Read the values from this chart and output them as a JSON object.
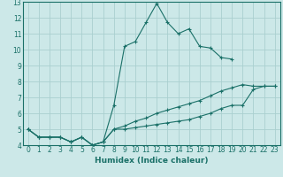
{
  "xlabel": "Humidex (Indice chaleur)",
  "xlim": [
    -0.5,
    23.5
  ],
  "ylim": [
    4,
    13
  ],
  "xticks": [
    0,
    1,
    2,
    3,
    4,
    5,
    6,
    7,
    8,
    9,
    10,
    11,
    12,
    13,
    14,
    15,
    16,
    17,
    18,
    19,
    20,
    21,
    22,
    23
  ],
  "yticks": [
    4,
    5,
    6,
    7,
    8,
    9,
    10,
    11,
    12,
    13
  ],
  "bg_color": "#cce8e8",
  "line_color": "#1a7068",
  "grid_color": "#aacfcf",
  "lines": [
    {
      "x": [
        0,
        1,
        2,
        3,
        4,
        5,
        6,
        7,
        8,
        9,
        10,
        11,
        12,
        13,
        14,
        15,
        16,
        17,
        18,
        19,
        20,
        21,
        22,
        23
      ],
      "y": [
        5.0,
        4.5,
        4.5,
        4.5,
        4.2,
        4.5,
        4.0,
        4.2,
        6.5,
        10.2,
        10.5,
        11.7,
        12.9,
        11.7,
        11.0,
        11.3,
        10.2,
        10.1,
        9.5,
        9.4,
        null,
        null,
        null,
        null
      ]
    },
    {
      "x": [
        0,
        1,
        2,
        3,
        4,
        5,
        6,
        7,
        8,
        9,
        10,
        11,
        12,
        13,
        14,
        15,
        16,
        17,
        18,
        19,
        20,
        21,
        22,
        23
      ],
      "y": [
        5.0,
        4.5,
        4.5,
        4.5,
        4.2,
        4.5,
        4.0,
        4.2,
        5.0,
        5.0,
        5.1,
        5.2,
        5.3,
        5.4,
        5.5,
        5.6,
        5.8,
        6.0,
        6.3,
        6.5,
        6.5,
        7.5,
        7.7,
        7.7
      ]
    },
    {
      "x": [
        0,
        1,
        2,
        3,
        4,
        5,
        6,
        7,
        8,
        9,
        10,
        11,
        12,
        13,
        14,
        15,
        16,
        17,
        18,
        19,
        20,
        21,
        22,
        23
      ],
      "y": [
        5.0,
        4.5,
        4.5,
        4.5,
        4.2,
        4.5,
        4.0,
        4.2,
        5.0,
        5.2,
        5.5,
        5.7,
        6.0,
        6.2,
        6.4,
        6.6,
        6.8,
        7.1,
        7.4,
        7.6,
        7.8,
        7.7,
        7.7,
        7.7
      ]
    }
  ]
}
